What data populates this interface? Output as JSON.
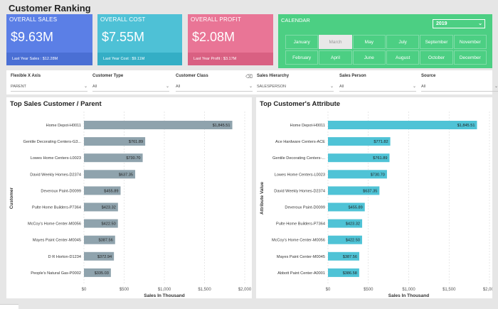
{
  "page": {
    "title": "Customer Ranking"
  },
  "kpis": {
    "sales": {
      "title": "OVERALL SALES",
      "value": "$9.63M",
      "footer": "Last Year Sales : $12.28M",
      "color": "#5b7fe6"
    },
    "cost": {
      "title": "OVERALL COST",
      "value": "$7.55M",
      "footer": "Last Year Cost : $9.11M",
      "color": "#4ec1d6"
    },
    "profit": {
      "title": "OVERALL PROFIT",
      "value": "$2.08M",
      "footer": "Last Year Profit : $3.17M",
      "color": "#e97596"
    }
  },
  "calendar": {
    "title": "CALENDAR",
    "year": "2019",
    "selected_month": "March",
    "months": [
      "January",
      "March",
      "May",
      "July",
      "September",
      "November",
      "February",
      "April",
      "June",
      "August",
      "October",
      "December"
    ]
  },
  "filters": [
    {
      "label": "Flexible X Axis",
      "value": "PARENT"
    },
    {
      "label": "Customer Type",
      "value": "All"
    },
    {
      "label": "Customer Class",
      "value": "All"
    },
    {
      "label": "Sales Hierarchy",
      "value": "SALESPERSON"
    },
    {
      "label": "Sales Person",
      "value": "All"
    },
    {
      "label": "Source",
      "value": "All"
    }
  ],
  "chart_data": [
    {
      "type": "bar",
      "orientation": "horizontal",
      "title": "Top Sales Customer / Parent",
      "xlabel": "Sales In Thousand",
      "ylabel": "Customer",
      "xlim": [
        0,
        2000
      ],
      "xticks": [
        "$0",
        "$500",
        "$1,000",
        "$1,500",
        "$2,000"
      ],
      "xtick_values": [
        0,
        500,
        1000,
        1500,
        2000
      ],
      "bar_color": "#8fa3ad",
      "categories": [
        "Home Depot-H0011",
        "Gentile Decorating Centers-G3...",
        "Lowes Home Centers-L0023",
        "David Weekly Homes-D2374",
        "Deveroux Paint-D0099",
        "Pulte Home Builders-P7364",
        "McCoy's Home Center-M0056",
        "Mayes Paint Center-M0045",
        "D R Horton-D1234",
        "People's Natural Gas-P0002"
      ],
      "values": [
        1845.51,
        761.89,
        730.7,
        637.35,
        455.89,
        423.32,
        422.5,
        387.56,
        372.94,
        335.03
      ],
      "labels": [
        "$1,845.51",
        "$761.89",
        "$730.70",
        "$637.35",
        "$455.89",
        "$423.32",
        "$422.50",
        "$387.56",
        "$372.94",
        "$335.03"
      ]
    },
    {
      "type": "bar",
      "orientation": "horizontal",
      "title": "Top Customer's Attribute",
      "xlabel": "Sales In Thousand",
      "ylabel": "Attribute Value",
      "xlim": [
        0,
        2000
      ],
      "xticks": [
        "$0",
        "$500",
        "$1,000",
        "$1,500",
        "$2,000"
      ],
      "xtick_values": [
        0,
        500,
        1000,
        1500,
        2000
      ],
      "bar_color": "#4fc3d6",
      "categories": [
        "Home Depot-H0011",
        "Ace Hardware Centers-ACE",
        "Gentile Decorating Centers-...",
        "Lowes Home Centers-L0023",
        "David Weekly Homes-D2374",
        "Deveroux Paint-D0099",
        "Pulte Home Builders-P7364",
        "McCoy's Home Center-M0056",
        "Mayes Paint Center-M0045",
        "Abbott Paint Center-A0001"
      ],
      "values": [
        1845.51,
        771.82,
        761.89,
        730.7,
        637.35,
        455.89,
        423.32,
        422.5,
        387.56,
        386.58
      ],
      "labels": [
        "$1,845.51",
        "$771.82",
        "$761.89",
        "$730.70",
        "$637.35",
        "$455.89",
        "$423.32",
        "$422.50",
        "$387.56",
        "$386.58"
      ]
    }
  ]
}
